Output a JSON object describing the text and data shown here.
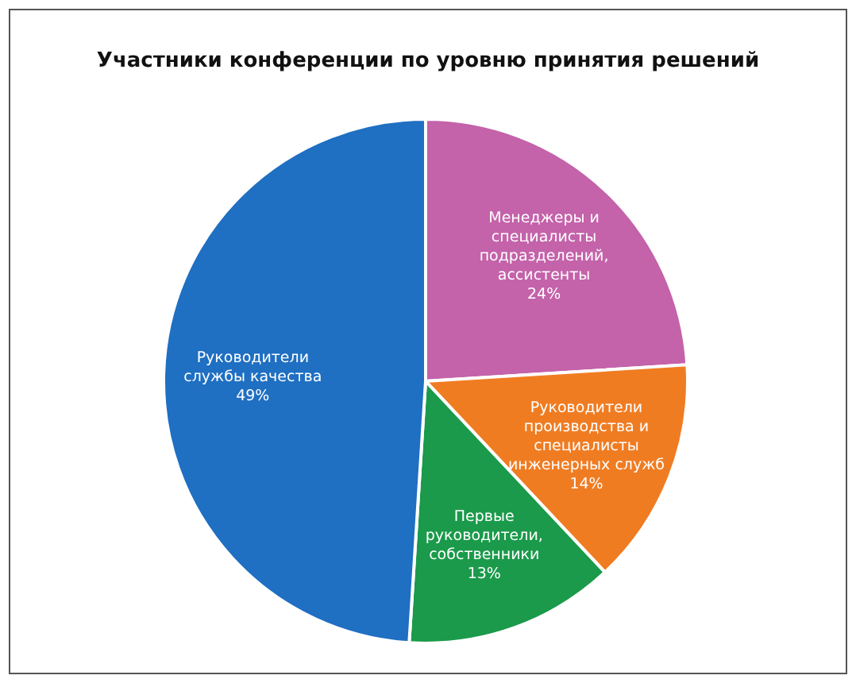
{
  "chart_data": {
    "type": "pie",
    "title": "Участники конференции по уровню принятия решений",
    "categories": [
      "Менеджеры и специалисты подразделений, ассистенты",
      "Руководители производства и специалисты инженерных служб",
      "Первые руководители, собственники",
      "Руководители службы качества"
    ],
    "values": [
      24,
      14,
      13,
      49
    ],
    "value_labels": [
      "24%",
      "14%",
      "13%",
      "49%"
    ],
    "colors": [
      "#c462aa",
      "#f07c22",
      "#1a9a4a",
      "#1f6fc2"
    ]
  }
}
